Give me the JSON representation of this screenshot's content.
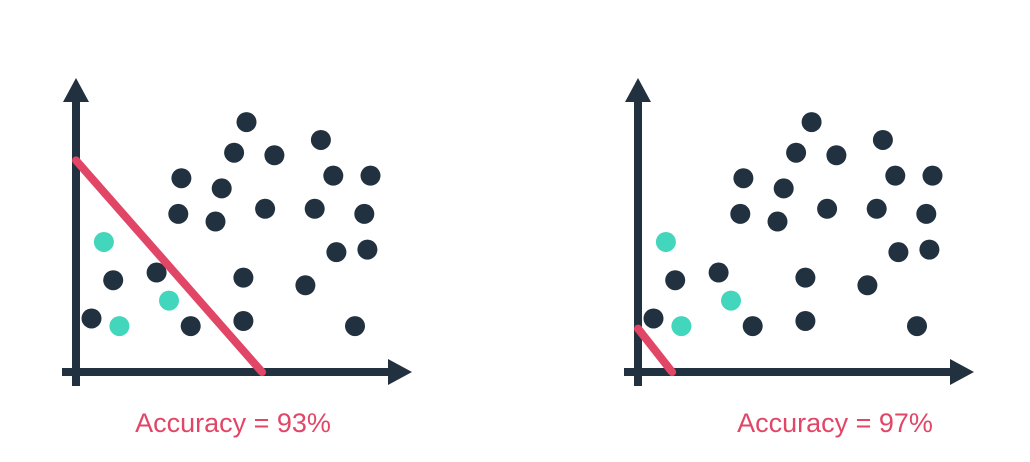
{
  "colors": {
    "axis": "#22313f",
    "dot_dark": "#22313f",
    "dot_teal": "#42d6bd",
    "boundary_line": "#e24667",
    "label": "#e24667"
  },
  "chart_data": [
    {
      "type": "scatter",
      "title": "",
      "xlabel": "",
      "ylabel": "",
      "xlim": [
        0,
        100
      ],
      "ylim": [
        0,
        100
      ],
      "grid": false,
      "caption": "Accuracy = 93%",
      "boundary": {
        "x1": 0,
        "y1": 83,
        "x2": 60,
        "y2": 0
      },
      "series": [
        {
          "class": "dark",
          "points": [
            [
              55,
              98
            ],
            [
              51,
              86
            ],
            [
              64,
              85
            ],
            [
              79,
              91
            ],
            [
              83,
              77
            ],
            [
              95,
              77
            ],
            [
              34,
              76
            ],
            [
              47,
              72
            ],
            [
              33,
              62
            ],
            [
              45,
              59
            ],
            [
              61,
              64
            ],
            [
              77,
              64
            ],
            [
              93,
              62
            ],
            [
              84,
              47
            ],
            [
              94,
              48
            ],
            [
              12,
              36
            ],
            [
              26,
              39
            ],
            [
              54,
              37
            ],
            [
              74,
              34
            ],
            [
              5,
              21
            ],
            [
              37,
              18
            ],
            [
              54,
              20
            ],
            [
              90,
              18
            ]
          ]
        },
        {
          "class": "teal",
          "points": [
            [
              9,
              51
            ],
            [
              30,
              28
            ],
            [
              14,
              18
            ]
          ]
        }
      ]
    },
    {
      "type": "scatter",
      "title": "",
      "xlabel": "",
      "ylabel": "",
      "xlim": [
        0,
        100
      ],
      "ylim": [
        0,
        100
      ],
      "grid": false,
      "caption": "Accuracy = 97%",
      "boundary": {
        "x1": 0,
        "y1": 17,
        "x2": 11,
        "y2": 0
      },
      "series": [
        {
          "class": "dark",
          "points": [
            [
              56,
              98
            ],
            [
              51,
              86
            ],
            [
              64,
              85
            ],
            [
              79,
              91
            ],
            [
              83,
              77
            ],
            [
              95,
              77
            ],
            [
              34,
              76
            ],
            [
              47,
              72
            ],
            [
              33,
              62
            ],
            [
              45,
              59
            ],
            [
              61,
              64
            ],
            [
              77,
              64
            ],
            [
              93,
              62
            ],
            [
              84,
              47
            ],
            [
              94,
              48
            ],
            [
              12,
              36
            ],
            [
              26,
              39
            ],
            [
              54,
              37
            ],
            [
              74,
              34
            ],
            [
              5,
              21
            ],
            [
              37,
              18
            ],
            [
              54,
              20
            ],
            [
              90,
              18
            ]
          ]
        },
        {
          "class": "teal",
          "points": [
            [
              9,
              51
            ],
            [
              30,
              28
            ],
            [
              14,
              18
            ]
          ]
        }
      ]
    }
  ]
}
